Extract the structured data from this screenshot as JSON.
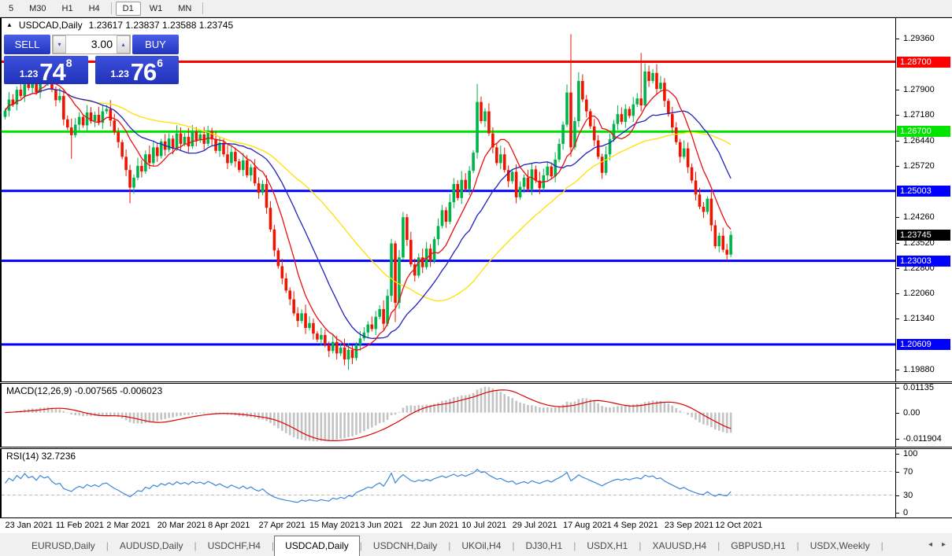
{
  "toolbar": {
    "timeframes": [
      "5",
      "M30",
      "H1",
      "H4",
      "D1",
      "W1",
      "MN"
    ],
    "active": "D1"
  },
  "chart_title": {
    "symbol": "USDCAD,Daily",
    "ohlc": "1.23617 1.23837 1.23588 1.23745"
  },
  "trade_panel": {
    "sell_label": "SELL",
    "buy_label": "BUY",
    "volume": "3.00",
    "spin_down_icon": "▾",
    "spin_up_icon": "▴",
    "sell_price": {
      "prefix": "1.23",
      "big": "74",
      "sup": "8"
    },
    "buy_price": {
      "prefix": "1.23",
      "big": "76",
      "sup": "6"
    }
  },
  "colors": {
    "bull": "#00b44c",
    "bear": "#ee1500",
    "ma_fast": "#e81010",
    "ma_mid": "#2020bb",
    "ma_slow": "#ffe000",
    "line_red": "#ff0000",
    "line_green": "#00e400",
    "line_blue": "#0000ff",
    "macd_bar": "#c3c3c3",
    "macd_line": "#dd0000",
    "rsi_line": "#3a87d8",
    "current_badge": "#000000"
  },
  "chart_data": {
    "type": "candlestick",
    "symbol": "USDCAD",
    "timeframe": "Daily",
    "price_range": {
      "min": 1.1955,
      "max": 1.2995
    },
    "candles": {
      "first_open": 1.2712,
      "wick_pad": 0.0018,
      "closes": [
        1.273,
        1.2762,
        1.2748,
        1.279,
        1.2772,
        1.2825,
        1.2795,
        1.2812,
        1.2782,
        1.284,
        1.2818,
        1.2835,
        1.279,
        1.276,
        1.2772,
        1.2705,
        1.2682,
        1.266,
        1.269,
        1.2712,
        1.2688,
        1.2725,
        1.27,
        1.2718,
        1.2695,
        1.2728,
        1.2735,
        1.2702,
        1.2668,
        1.264,
        1.2598,
        1.256,
        1.251,
        1.2538,
        1.2572,
        1.2556,
        1.2605,
        1.258,
        1.2625,
        1.26,
        1.2642,
        1.2618,
        1.265,
        1.2622,
        1.2665,
        1.2635,
        1.2655,
        1.2628,
        1.267,
        1.2645,
        1.2662,
        1.2635,
        1.2672,
        1.2648,
        1.2615,
        1.2638,
        1.2605,
        1.258,
        1.2612,
        1.2585,
        1.256,
        1.2588,
        1.2545,
        1.2568,
        1.2522,
        1.2495,
        1.252,
        1.2452,
        1.239,
        1.233,
        1.2285,
        1.225,
        1.2215,
        1.219,
        1.215,
        1.2128,
        1.215,
        1.2108,
        1.2122,
        1.2092,
        1.2075,
        1.2088,
        1.206,
        1.2042,
        1.2068,
        1.2035,
        1.2052,
        1.2018,
        1.2045,
        1.2022,
        1.206,
        1.2078,
        1.2095,
        1.2118,
        1.2105,
        1.214,
        1.2162,
        1.212,
        1.22,
        1.235,
        1.218,
        1.231,
        1.2425,
        1.236,
        1.229,
        1.2258,
        1.231,
        1.2282,
        1.2335,
        1.23,
        1.2362,
        1.24,
        1.2445,
        1.2412,
        1.2468,
        1.252,
        1.248,
        1.2532,
        1.2505,
        1.2558,
        1.261,
        1.2755,
        1.27,
        1.2728,
        1.2665,
        1.2625,
        1.258,
        1.2605,
        1.256,
        1.2528,
        1.2555,
        1.2482,
        1.2512,
        1.2538,
        1.2505,
        1.2562,
        1.253,
        1.2508,
        1.2545,
        1.257,
        1.2542,
        1.259,
        1.2635,
        1.269,
        1.2782,
        1.2625,
        1.27,
        1.2815,
        1.2762,
        1.2728,
        1.2685,
        1.2645,
        1.2598,
        1.2552,
        1.2605,
        1.2648,
        1.2692,
        1.272,
        1.2698,
        1.2735,
        1.2715,
        1.2748,
        1.2765,
        1.2745,
        1.2842,
        1.2815,
        1.2838,
        1.2792,
        1.281,
        1.2758,
        1.272,
        1.2682,
        1.264,
        1.2598,
        1.2622,
        1.2568,
        1.253,
        1.249,
        1.2455,
        1.244,
        1.2478,
        1.2402,
        1.2342,
        1.2372,
        1.2332,
        1.2318,
        1.23745
      ],
      "specials": {
        "5": {
          "high": 1.2872
        },
        "9": {
          "high": 1.2862
        },
        "17": {
          "low": 1.2592
        },
        "32": {
          "low": 1.2465
        },
        "88": {
          "low": 1.1988
        },
        "100": {
          "low": 1.2125
        },
        "121": {
          "high": 1.2807
        },
        "145": {
          "high": 1.2949,
          "low": 1.2598
        },
        "163": {
          "high": 1.2895
        }
      }
    },
    "moving_averages": [
      {
        "period": 44,
        "color": "#ffe000"
      },
      {
        "period": 20,
        "color": "#2020bb"
      },
      {
        "period": 9,
        "color": "#e81010"
      }
    ],
    "hlines": [
      {
        "value": 1.287,
        "label": "1.28700",
        "color": "#ff0000"
      },
      {
        "value": 1.267,
        "label": "1.26700",
        "color": "#00e400"
      },
      {
        "value": 1.25003,
        "label": "1.25003",
        "color": "#0000ff"
      },
      {
        "value": 1.23003,
        "label": "1.23003",
        "color": "#0000ff"
      },
      {
        "value": 1.20609,
        "label": "1.20609",
        "color": "#0000ff"
      }
    ],
    "current_price": {
      "value": 1.23745,
      "label": "1.23745"
    },
    "y_ticks": [
      {
        "v": 1.2936,
        "label": "1.29360"
      },
      {
        "v": 1.279,
        "label": "1.27900"
      },
      {
        "v": 1.2718,
        "label": "1.27180"
      },
      {
        "v": 1.2644,
        "label": "1.26440"
      },
      {
        "v": 1.2572,
        "label": "1.25720"
      },
      {
        "v": 1.2426,
        "label": "1.24260"
      },
      {
        "v": 1.2352,
        "label": "1.23520"
      },
      {
        "v": 1.228,
        "label": "1.22800"
      },
      {
        "v": 1.2206,
        "label": "1.22060"
      },
      {
        "v": 1.2134,
        "label": "1.21340"
      },
      {
        "v": 1.1988,
        "label": "1.19880"
      }
    ],
    "x_labels": [
      {
        "i": 1,
        "label": "23 Jan 2021"
      },
      {
        "i": 14,
        "label": "11 Feb 2021"
      },
      {
        "i": 27,
        "label": "2 Mar 2021"
      },
      {
        "i": 40,
        "label": "20 Mar 2021"
      },
      {
        "i": 53,
        "label": "8 Apr 2021"
      },
      {
        "i": 66,
        "label": "27 Apr 2021"
      },
      {
        "i": 79,
        "label": "15 May 2021"
      },
      {
        "i": 92,
        "label": "3 Jun 2021"
      },
      {
        "i": 105,
        "label": "22 Jun 2021"
      },
      {
        "i": 118,
        "label": "10 Jul 2021"
      },
      {
        "i": 131,
        "label": "29 Jul 2021"
      },
      {
        "i": 144,
        "label": "17 Aug 2021"
      },
      {
        "i": 157,
        "label": "4 Sep 2021"
      },
      {
        "i": 170,
        "label": "23 Sep 2021"
      },
      {
        "i": 183,
        "label": "12 Oct 2021"
      }
    ],
    "macd": {
      "title": "MACD(12,26,9) -0.007565 -0.006023",
      "params": [
        12,
        26,
        9
      ],
      "range": [
        -0.0155,
        0.0131
      ],
      "ticks": [
        {
          "v": 0.01135,
          "label": "0.01135"
        },
        {
          "v": 0.0,
          "label": "0.00"
        },
        {
          "v": -0.011904,
          "label": "-0.011904"
        }
      ]
    },
    "rsi": {
      "title": "RSI(14) 32.7236",
      "period": 14,
      "range": [
        -8,
        108
      ],
      "ticks": [
        {
          "v": 100,
          "label": "100"
        },
        {
          "v": 70,
          "label": "70"
        },
        {
          "v": 30,
          "label": "30"
        },
        {
          "v": 0,
          "label": "0"
        }
      ],
      "levels": [
        70,
        30
      ]
    }
  },
  "tabbar": {
    "tabs": [
      {
        "label": "EURUSD,Daily"
      },
      {
        "label": "AUDUSD,Daily"
      },
      {
        "label": "USDCHF,H4"
      },
      {
        "label": "USDCAD,Daily",
        "active": true
      },
      {
        "label": "USDCNH,Daily"
      },
      {
        "label": "UKOil,H4"
      },
      {
        "label": "DJ30,H1"
      },
      {
        "label": "USDX,H1"
      },
      {
        "label": "XAUUSD,H4"
      },
      {
        "label": "GBPUSD,H1"
      },
      {
        "label": "USDX,Weekly"
      }
    ],
    "nav_left_icon": "◂",
    "nav_right_icon": "▸"
  }
}
